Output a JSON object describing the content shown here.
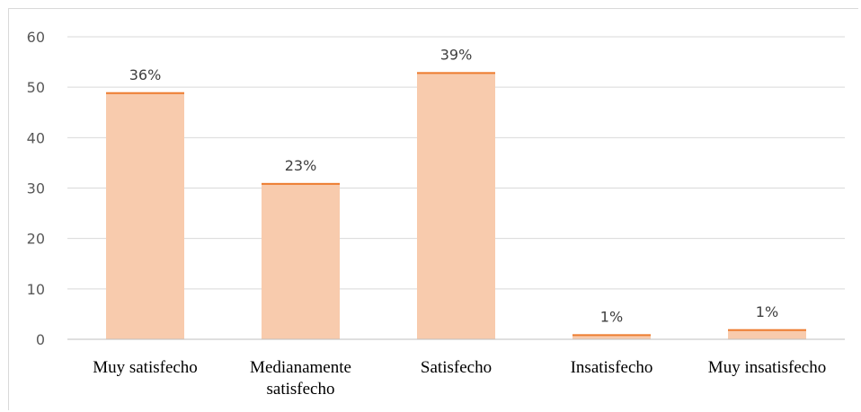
{
  "chart_data": {
    "type": "bar",
    "categories": [
      "Muy satisfecho",
      "Medianamente satisfecho",
      "Satisfecho",
      "Insatisfecho",
      "Muy insatisfecho"
    ],
    "category_lines": [
      [
        "Muy satisfecho"
      ],
      [
        "Medianamente",
        "satisfecho"
      ],
      [
        "Satisfecho"
      ],
      [
        "Insatisfecho"
      ],
      [
        "Muy insatisfecho"
      ]
    ],
    "values": [
      49,
      31,
      53,
      1,
      2
    ],
    "data_labels": [
      "36%",
      "23%",
      "39%",
      "1%",
      "1%"
    ],
    "yticks": [
      "0",
      "10",
      "20",
      "30",
      "40",
      "50",
      "60"
    ],
    "ylim": [
      0,
      60
    ],
    "grid": true,
    "title": "",
    "xlabel": "",
    "ylabel": "",
    "colors": {
      "bar_fill": "#f8cbad",
      "bar_top": "#ed7d31",
      "grid": "#d9d9d9",
      "axis": "#bfbfbf"
    }
  }
}
